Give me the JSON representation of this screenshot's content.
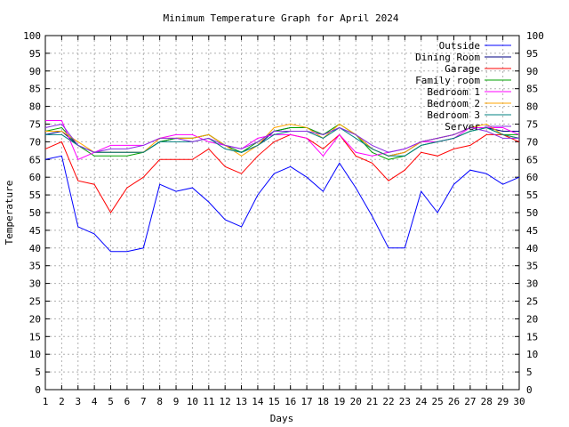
{
  "chart_data": {
    "type": "line",
    "title": "Minimum Temperature Graph for April 2024",
    "xlabel": "Days",
    "ylabel": "Temperature",
    "xlim": [
      1,
      30
    ],
    "ylim": [
      0,
      100
    ],
    "x_ticks": [
      1,
      2,
      3,
      4,
      5,
      6,
      7,
      8,
      9,
      10,
      11,
      12,
      13,
      14,
      15,
      16,
      17,
      18,
      19,
      20,
      21,
      22,
      23,
      24,
      25,
      26,
      27,
      28,
      29,
      30
    ],
    "y_ticks": [
      0,
      5,
      10,
      15,
      20,
      25,
      30,
      35,
      40,
      45,
      50,
      55,
      60,
      65,
      70,
      75,
      80,
      85,
      90,
      95,
      100
    ],
    "grid": true,
    "legend_position": "top-right",
    "x": [
      1,
      2,
      3,
      4,
      5,
      6,
      7,
      8,
      9,
      10,
      11,
      12,
      13,
      14,
      15,
      16,
      17,
      18,
      19,
      20,
      21,
      22,
      23,
      24,
      25,
      26,
      27,
      28,
      29,
      30
    ],
    "series": [
      {
        "name": "Outside",
        "color": "#0000ff",
        "values": [
          65,
          66,
          46,
          44,
          39,
          39,
          40,
          58,
          56,
          57,
          53,
          48,
          46,
          55,
          61,
          63,
          60,
          56,
          64,
          57,
          49,
          40,
          40,
          56,
          50,
          58,
          62,
          61,
          58,
          60
        ]
      },
      {
        "name": "Dining Room",
        "color": "#000080",
        "values": [
          72,
          73,
          69,
          67,
          67,
          67,
          67,
          70,
          71,
          71,
          72,
          69,
          67,
          69,
          73,
          74,
          74,
          72,
          74,
          72,
          68,
          66,
          67,
          70,
          71,
          72,
          74,
          74,
          73,
          73
        ]
      },
      {
        "name": "Garage",
        "color": "#ff0000",
        "values": [
          68,
          70,
          59,
          58,
          50,
          57,
          60,
          65,
          65,
          65,
          68,
          63,
          61,
          66,
          70,
          72,
          71,
          68,
          72,
          66,
          64,
          59,
          62,
          67,
          66,
          68,
          69,
          72,
          72,
          70
        ]
      },
      {
        "name": "Family room",
        "color": "#00a000",
        "values": [
          73,
          74,
          69,
          66,
          66,
          66,
          67,
          70,
          71,
          71,
          72,
          69,
          67,
          70,
          73,
          74,
          74,
          72,
          75,
          72,
          67,
          65,
          66,
          69,
          70,
          71,
          73,
          74,
          72,
          72
        ]
      },
      {
        "name": "Bedroom 1",
        "color": "#ff00ff",
        "values": [
          76,
          76,
          65,
          67,
          69,
          69,
          69,
          71,
          72,
          72,
          70,
          69,
          68,
          71,
          72,
          72,
          71,
          66,
          72,
          67,
          66,
          67,
          68,
          70,
          70,
          71,
          74,
          74,
          74,
          72
        ]
      },
      {
        "name": "Bedroom 2",
        "color": "#ffa500",
        "values": [
          73,
          73,
          70,
          67,
          67,
          67,
          67,
          71,
          71,
          71,
          72,
          69,
          66,
          69,
          74,
          75,
          74,
          71,
          75,
          72,
          68,
          66,
          67,
          70,
          71,
          72,
          74,
          75,
          72,
          71
        ]
      },
      {
        "name": "Bedroom 3",
        "color": "#008080",
        "values": [
          72,
          72,
          69,
          67,
          67,
          67,
          67,
          70,
          70,
          70,
          71,
          68,
          67,
          69,
          72,
          73,
          73,
          71,
          74,
          71,
          68,
          66,
          66,
          69,
          70,
          71,
          73,
          74,
          72,
          71
        ]
      },
      {
        "name": "Server",
        "color": "#8a2be2",
        "values": [
          74,
          75,
          69,
          67,
          68,
          68,
          69,
          71,
          71,
          70,
          71,
          69,
          68,
          70,
          73,
          73,
          73,
          72,
          74,
          72,
          69,
          67,
          68,
          70,
          71,
          72,
          74,
          73,
          71,
          71
        ]
      }
    ]
  }
}
